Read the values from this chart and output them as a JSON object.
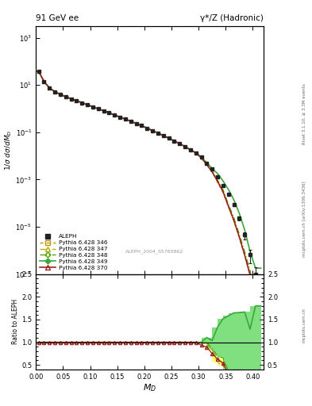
{
  "title_left": "91 GeV ee",
  "title_right": "γ*/Z (Hadronic)",
  "ylabel_main": "1/σ dσ/dM_D",
  "ylabel_ratio": "Ratio to ALEPH",
  "xlabel": "M_D",
  "right_label_top": "Rivet 3.1.10, ≥ 3.3M events",
  "right_label_bot": "mcplots.cern.ch [arXiv:1306.3436]",
  "watermark": "ALEPH_2004_S5765862",
  "ylim_main": [
    1e-07,
    3000
  ],
  "ylim_ratio": [
    0.4,
    2.5
  ],
  "xlim": [
    0.0,
    0.42
  ],
  "background_color": "#ffffff",
  "data_x": [
    0.005,
    0.015,
    0.025,
    0.035,
    0.045,
    0.055,
    0.065,
    0.075,
    0.085,
    0.095,
    0.105,
    0.115,
    0.125,
    0.135,
    0.145,
    0.155,
    0.165,
    0.175,
    0.185,
    0.195,
    0.205,
    0.215,
    0.225,
    0.235,
    0.245,
    0.255,
    0.265,
    0.275,
    0.285,
    0.295,
    0.305,
    0.315,
    0.325,
    0.335,
    0.345,
    0.355,
    0.365,
    0.375,
    0.385,
    0.395,
    0.405
  ],
  "bin_width": 0.01,
  "aleph_y": [
    38,
    14,
    7.5,
    5.2,
    4.0,
    3.2,
    2.6,
    2.15,
    1.78,
    1.45,
    1.2,
    0.98,
    0.81,
    0.66,
    0.54,
    0.44,
    0.36,
    0.29,
    0.237,
    0.19,
    0.15,
    0.118,
    0.093,
    0.072,
    0.056,
    0.043,
    0.033,
    0.025,
    0.018,
    0.0135,
    0.0088,
    0.0048,
    0.0028,
    0.00135,
    0.00058,
    0.00024,
    8.5e-05,
    2.3e-05,
    4.5e-06,
    7e-07,
    1e-07
  ],
  "aleph_yerr": [
    2.0,
    0.8,
    0.4,
    0.26,
    0.2,
    0.16,
    0.13,
    0.11,
    0.09,
    0.073,
    0.06,
    0.049,
    0.041,
    0.033,
    0.027,
    0.022,
    0.018,
    0.0145,
    0.0119,
    0.0095,
    0.0075,
    0.0059,
    0.0047,
    0.0036,
    0.0028,
    0.0022,
    0.0017,
    0.00125,
    0.0009,
    0.00068,
    0.00044,
    0.00024,
    0.00014,
    6.8e-05,
    3.5e-05,
    1.8e-05,
    9e-06,
    4e-06,
    1.5e-06,
    4e-07,
    1e-07
  ],
  "p346_y": [
    38,
    14,
    7.5,
    5.2,
    4.0,
    3.2,
    2.6,
    2.15,
    1.78,
    1.45,
    1.2,
    0.98,
    0.81,
    0.66,
    0.54,
    0.44,
    0.36,
    0.29,
    0.237,
    0.19,
    0.15,
    0.118,
    0.093,
    0.072,
    0.056,
    0.043,
    0.033,
    0.025,
    0.018,
    0.0135,
    0.0088,
    0.0046,
    0.0023,
    0.00075,
    0.00028,
    7e-05,
    1.8e-05,
    3.5e-06,
    6e-07,
    9e-08,
    3e-08
  ],
  "p347_y": [
    38,
    14,
    7.5,
    5.2,
    4.0,
    3.2,
    2.6,
    2.15,
    1.78,
    1.45,
    1.2,
    0.98,
    0.81,
    0.66,
    0.54,
    0.44,
    0.36,
    0.29,
    0.237,
    0.19,
    0.15,
    0.118,
    0.093,
    0.072,
    0.056,
    0.043,
    0.033,
    0.025,
    0.018,
    0.0135,
    0.0088,
    0.0047,
    0.0024,
    0.00085,
    0.00032,
    7.5e-05,
    2e-05,
    4e-06,
    7e-07,
    1e-07,
    2e-08
  ],
  "p348_y": [
    38,
    14,
    7.5,
    5.2,
    4.0,
    3.2,
    2.6,
    2.15,
    1.78,
    1.45,
    1.2,
    0.98,
    0.81,
    0.66,
    0.54,
    0.44,
    0.36,
    0.29,
    0.237,
    0.19,
    0.15,
    0.118,
    0.093,
    0.072,
    0.056,
    0.043,
    0.033,
    0.025,
    0.018,
    0.0135,
    0.0088,
    0.0048,
    0.0024,
    0.00095,
    0.00038,
    9e-05,
    2.5e-05,
    5e-06,
    9e-07,
    1.4e-07,
    2e-08
  ],
  "p349_y": [
    38,
    14,
    7.5,
    5.2,
    4.0,
    3.2,
    2.6,
    2.15,
    1.78,
    1.45,
    1.2,
    0.98,
    0.81,
    0.66,
    0.54,
    0.44,
    0.36,
    0.29,
    0.237,
    0.19,
    0.15,
    0.118,
    0.093,
    0.072,
    0.056,
    0.043,
    0.033,
    0.025,
    0.018,
    0.0135,
    0.0088,
    0.0053,
    0.0029,
    0.0018,
    0.00088,
    0.00038,
    0.00014,
    3.8e-05,
    7.5e-06,
    9e-07,
    1.8e-07
  ],
  "p370_y": [
    38,
    14,
    7.5,
    5.2,
    4.0,
    3.2,
    2.6,
    2.15,
    1.78,
    1.45,
    1.2,
    0.98,
    0.81,
    0.66,
    0.54,
    0.44,
    0.36,
    0.29,
    0.237,
    0.19,
    0.15,
    0.118,
    0.093,
    0.072,
    0.056,
    0.043,
    0.033,
    0.025,
    0.018,
    0.0135,
    0.0082,
    0.0043,
    0.0021,
    0.00085,
    0.00031,
    7.5e-05,
    1.9e-05,
    3.8e-06,
    6.5e-07,
    9e-08,
    2e-08
  ],
  "color_aleph": "#222222",
  "color_346": "#b8960c",
  "color_347": "#b8b000",
  "color_348": "#50a000",
  "color_349": "#38a838",
  "color_370": "#a02020",
  "band_yellow_color": "#ffff80",
  "band_green_color": "#80e080"
}
